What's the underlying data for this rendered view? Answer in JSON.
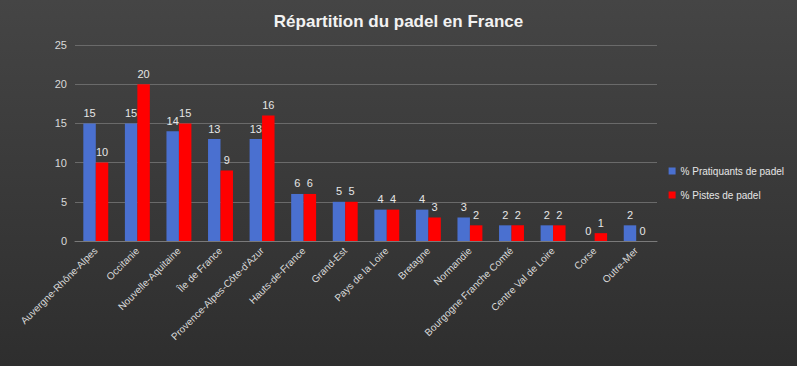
{
  "chart_data": {
    "type": "bar",
    "title": "Répartition du padel en France",
    "categories": [
      "Auvergne-Rhône-Alpes",
      "Occitanie",
      "Nouvelle-Aquitaine",
      "Île de France",
      "Provence-Alpes-Côte-d'Azur",
      "Hauts-de-France",
      "Grand-Est",
      "Pays de la Loire",
      "Bretagne",
      "Normandie",
      "Bourgogne Franche Comté",
      "Centre Val de Loire",
      "Corse",
      "Outre-Mer"
    ],
    "series": [
      {
        "name": "% Pratiquants de padel",
        "color": "#4a70d0",
        "values": [
          15,
          15,
          14,
          13,
          13,
          6,
          5,
          4,
          4,
          3,
          2,
          2,
          0,
          2
        ]
      },
      {
        "name": "% Pistes de padel",
        "color": "#ff0000",
        "values": [
          10,
          20,
          15,
          9,
          16,
          6,
          5,
          4,
          3,
          2,
          2,
          2,
          1,
          0
        ]
      }
    ],
    "ylim": [
      0,
      25
    ],
    "yticks": [
      0,
      5,
      10,
      15,
      20,
      25
    ],
    "grid": true,
    "legend": "right",
    "data_labels": true
  }
}
